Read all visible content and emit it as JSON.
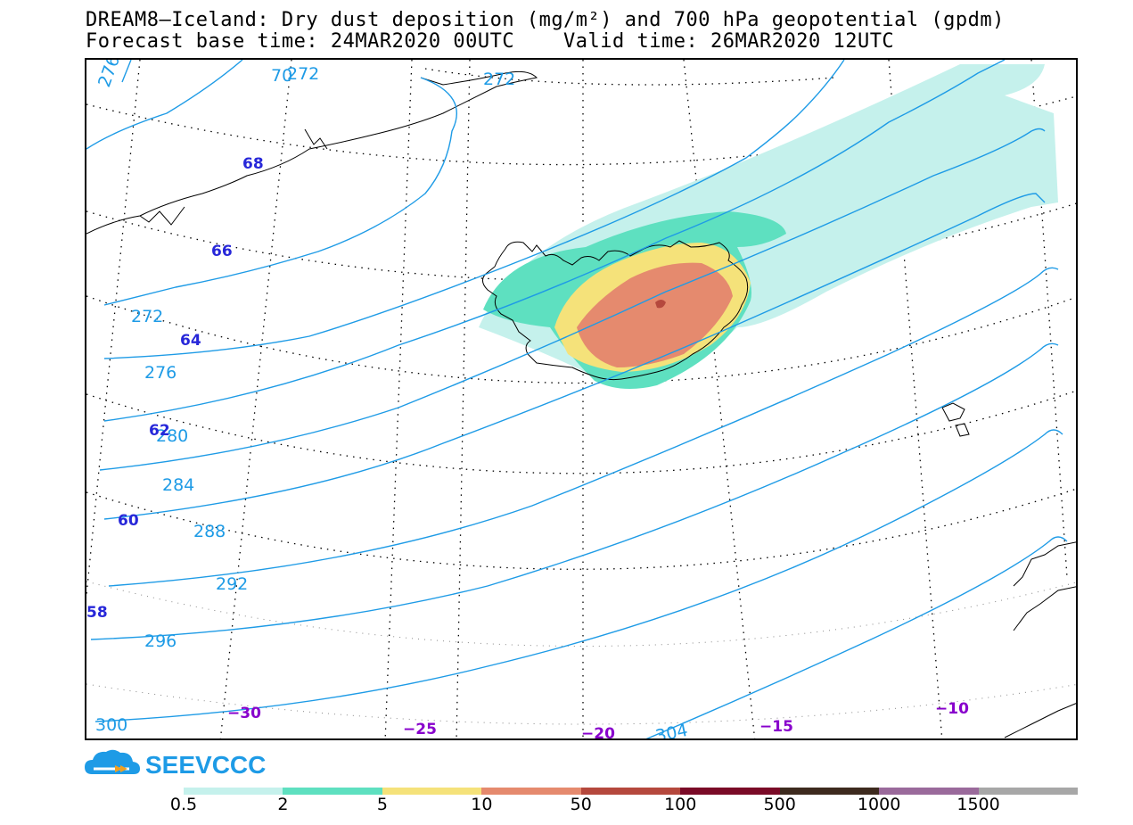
{
  "titles": {
    "line1": "DREAM8–Iceland: Dry dust deposition (mg/m²) and 700 hPa geopotential (gpdm)",
    "line2": "Forecast base time: 24MAR2020 00UTC    Valid time: 26MAR2020 12UTC"
  },
  "map": {
    "contour_color": "#1e9be6",
    "latitude_label_color": "#2727d9",
    "longitude_label_color": "#8800cc",
    "geopotential_labels": [
      "272",
      "272",
      "272",
      "276",
      "276",
      "280",
      "284",
      "288",
      "292",
      "296",
      "300",
      "304",
      "70"
    ],
    "latitude_labels": [
      "68",
      "66",
      "64",
      "62",
      "60",
      "58"
    ],
    "longitude_labels": [
      "−30",
      "−25",
      "−20",
      "−15",
      "−10"
    ]
  },
  "logo": {
    "text": "SEEVCCC",
    "color": "#1e9be6"
  },
  "legend": {
    "colors": [
      "#c5f1ec",
      "#5ee0c0",
      "#f5e27a",
      "#e58a6e",
      "#b5483d",
      "#7a0a27",
      "#3d2a1e",
      "#9a6a9b",
      "#a7a7a7"
    ],
    "labels": [
      "0.5",
      "2",
      "5",
      "10",
      "50",
      "100",
      "500",
      "1000",
      "1500"
    ]
  }
}
